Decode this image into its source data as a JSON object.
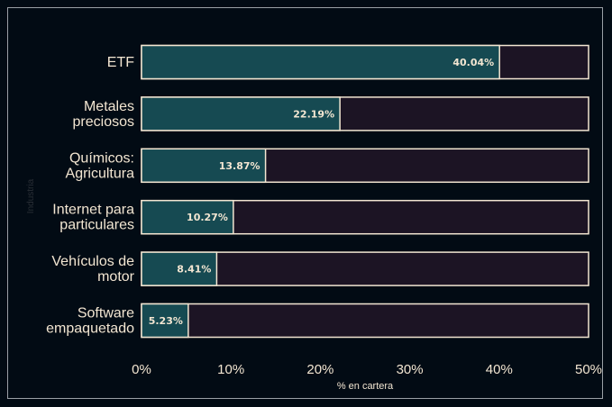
{
  "chart_data": {
    "type": "bar",
    "orientation": "horizontal",
    "categories": [
      [
        "ETF"
      ],
      [
        "Metales",
        "preciosos"
      ],
      [
        "Químicos:",
        "Agricultura"
      ],
      [
        "Internet para",
        "particulares"
      ],
      [
        "Vehículos de",
        "motor"
      ],
      [
        "Software",
        "empaquetado"
      ]
    ],
    "values": [
      40.04,
      22.19,
      13.87,
      10.27,
      8.41,
      5.23
    ],
    "value_labels": [
      "40.04%",
      "22.19%",
      "13.87%",
      "10.27%",
      "8.41%",
      "5.23%"
    ],
    "xlim": [
      0,
      50
    ],
    "xticks": [
      0,
      10,
      20,
      30,
      40,
      50
    ],
    "xtick_labels": [
      "0%",
      "10%",
      "20%",
      "30%",
      "40%",
      "50%"
    ],
    "xlabel": "% en cartera",
    "ylabel": "Industria",
    "colors": {
      "background": "#020b14",
      "bar_fill": "#164a52",
      "bar_track": "#1c1424",
      "bar_edge": "#f3e6d2",
      "text": "#f3e6d2"
    }
  }
}
